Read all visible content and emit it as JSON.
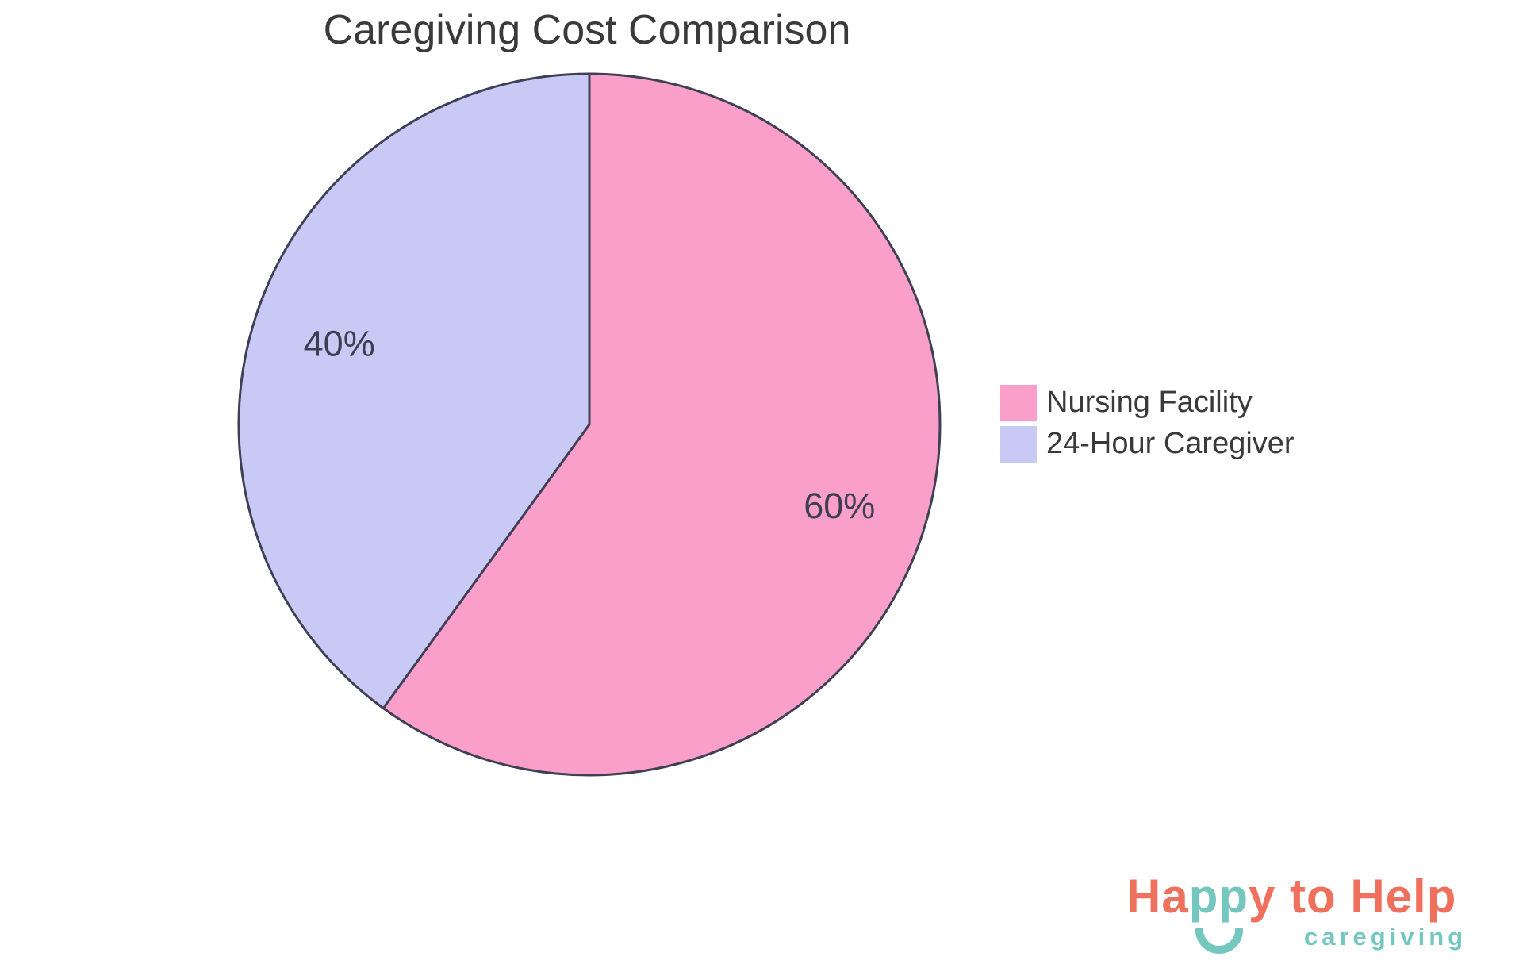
{
  "chart_data": {
    "type": "pie",
    "title": "Caregiving Cost Comparison",
    "slices": [
      {
        "label": "Nursing Facility",
        "value": 60,
        "display": "60%",
        "color": "#F99FCA"
      },
      {
        "label": "24-Hour Caregiver",
        "value": 40,
        "display": "40%",
        "color": "#C8C9F4"
      }
    ],
    "start_angle_deg": 0,
    "direction": "clockwise",
    "stroke_color": "#3F3F55",
    "stroke_width": 3,
    "label_color": "#3E3E52",
    "title_color": "#3A3A3A",
    "legend_position": "right",
    "legend_text_color": "#3A3A3A",
    "background": "#FFFFFF"
  },
  "logo": {
    "wordmark_part1": "Ha",
    "wordmark_part2": "pp",
    "wordmark_part3": "y to Help",
    "subtitle": "caregiving",
    "coral": "#F0705E",
    "teal": "#74C7BF"
  }
}
